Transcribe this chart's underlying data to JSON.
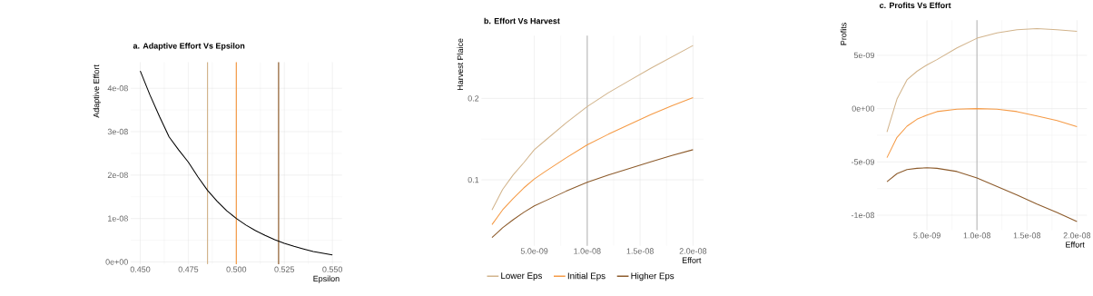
{
  "chart_data": [
    {
      "type": "line",
      "title": "a. Adaptive Effort Vs Epsilon",
      "xlabel": "Epsilon",
      "ylabel": "Adaptive Effort",
      "x": [
        0.45,
        0.455,
        0.46,
        0.465,
        0.47,
        0.475,
        0.48,
        0.485,
        0.49,
        0.495,
        0.5,
        0.505,
        0.51,
        0.515,
        0.52,
        0.525,
        0.53,
        0.535,
        0.54,
        0.545,
        0.55
      ],
      "series": [
        {
          "color": "#000000",
          "values": [
            4.4e-08,
            3.85e-08,
            3.35e-08,
            2.88e-08,
            2.58e-08,
            2.3e-08,
            1.96e-08,
            1.65e-08,
            1.4e-08,
            1.18e-08,
            1e-08,
            8.5e-09,
            7.2e-09,
            6.1e-09,
            5.1e-09,
            4.3e-09,
            3.6e-09,
            3e-09,
            2.4e-09,
            2e-09,
            1.6e-09
          ]
        }
      ],
      "xlim": [
        0.445,
        0.555
      ],
      "xticks": [
        {
          "value": 0.45,
          "label": "0.450"
        },
        {
          "value": 0.475,
          "label": "0.475"
        },
        {
          "value": 0.5,
          "label": "0.500"
        },
        {
          "value": 0.525,
          "label": "0.525"
        },
        {
          "value": 0.55,
          "label": "0.550"
        }
      ],
      "ylim": [
        -5e-10,
        4.6e-08
      ],
      "yticks": [
        {
          "value": 0,
          "label": "0e+00"
        },
        {
          "value": 1e-08,
          "label": "1e-08"
        },
        {
          "value": 2e-08,
          "label": "2e-08"
        },
        {
          "value": 3e-08,
          "label": "3e-08"
        },
        {
          "value": 4e-08,
          "label": "4e-08"
        }
      ],
      "ref_lines": [
        {
          "axis": "x",
          "value": 0.485,
          "color": "#d2b48c"
        },
        {
          "axis": "x",
          "value": 0.5,
          "color": "#f59a45"
        },
        {
          "axis": "x",
          "value": 0.522,
          "color": "#8c5a2a"
        }
      ],
      "grid": true
    },
    {
      "type": "line",
      "title": "b. Effort Vs Harvest",
      "xlabel": "Effort",
      "ylabel": "Harvest Plaice",
      "x": [
        1e-09,
        2e-09,
        3e-09,
        4e-09,
        5e-09,
        6e-09,
        8e-09,
        1e-08,
        1.2e-08,
        1.4e-08,
        1.6e-08,
        1.8e-08,
        2e-08
      ],
      "series": [
        {
          "name": "Lower Eps",
          "color": "#d2b48c",
          "values": [
            0.063,
            0.088,
            0.106,
            0.121,
            0.137,
            0.148,
            0.17,
            0.19,
            0.207,
            0.222,
            0.237,
            0.251,
            0.265
          ]
        },
        {
          "name": "Initial Eps",
          "color": "#f59a45",
          "values": [
            0.045,
            0.063,
            0.077,
            0.09,
            0.101,
            0.11,
            0.127,
            0.143,
            0.156,
            0.168,
            0.18,
            0.191,
            0.201
          ]
        },
        {
          "name": "Higher Eps",
          "color": "#8c5a2a",
          "values": [
            0.029,
            0.041,
            0.051,
            0.06,
            0.068,
            0.074,
            0.086,
            0.097,
            0.106,
            0.114,
            0.122,
            0.13,
            0.137
          ]
        }
      ],
      "xlim": [
        0,
        2.1e-08
      ],
      "xticks": [
        {
          "value": 5e-09,
          "label": "5.0e-09"
        },
        {
          "value": 1e-08,
          "label": "1.0e-08"
        },
        {
          "value": 1.5e-08,
          "label": "1.5e-08"
        },
        {
          "value": 2e-08,
          "label": "2.0e-08"
        }
      ],
      "ylim": [
        0.019,
        0.277
      ],
      "yticks": [
        0.1,
        0.2
      ],
      "ref_lines": [
        {
          "axis": "x",
          "value": 1e-08,
          "color": "#bebebe"
        }
      ],
      "grid": true,
      "legend": "bottom"
    },
    {
      "type": "line",
      "title": "c. Profits Vs Effort",
      "xlabel": "Effort",
      "ylabel": "Profits",
      "x": [
        1e-09,
        2e-09,
        3e-09,
        4e-09,
        5e-09,
        6e-09,
        8e-09,
        1e-08,
        1.2e-08,
        1.4e-08,
        1.6e-08,
        1.8e-08,
        2e-08
      ],
      "series": [
        {
          "color": "#d2b48c",
          "values": [
            -2.2e-09,
            9e-10,
            2.7e-09,
            3.5e-09,
            4.1e-09,
            4.6e-09,
            5.7e-09,
            6.6e-09,
            7.1e-09,
            7.4e-09,
            7.5e-09,
            7.4e-09,
            7.25e-09
          ]
        },
        {
          "color": "#f59a45",
          "values": [
            -4.6e-09,
            -2.7e-09,
            -1.65e-09,
            -1e-09,
            -6e-10,
            -2.8e-10,
            -6e-11,
            0.0,
            -6e-11,
            -2.8e-10,
            -7e-10,
            -1.12e-09,
            -1.7e-09
          ]
        },
        {
          "color": "#8c5a2a",
          "values": [
            -6.85e-09,
            -6.1e-09,
            -5.72e-09,
            -5.6e-09,
            -5.55e-09,
            -5.6e-09,
            -5.9e-09,
            -6.5e-09,
            -7.3e-09,
            -8.1e-09,
            -8.95e-09,
            -9.75e-09,
            -1.06e-08
          ]
        }
      ],
      "xlim": [
        0,
        2.1e-08
      ],
      "xticks": [
        {
          "value": 5e-09,
          "label": "5.0e-09"
        },
        {
          "value": 1e-08,
          "label": "1.0e-08"
        },
        {
          "value": 1.5e-08,
          "label": "1.5e-08"
        },
        {
          "value": 2e-08,
          "label": "2.0e-08"
        }
      ],
      "ylim": [
        -1.14e-08,
        8.3e-09
      ],
      "yticks": [
        {
          "value": -1e-08,
          "label": "-1e-08"
        },
        {
          "value": -5e-09,
          "label": "-5e-09"
        },
        {
          "value": 0,
          "label": "0e+00"
        },
        {
          "value": 5e-09,
          "label": "5e-09"
        }
      ],
      "ref_lines": [
        {
          "axis": "x",
          "value": 1e-08,
          "color": "#bebebe"
        }
      ],
      "grid": true
    }
  ]
}
